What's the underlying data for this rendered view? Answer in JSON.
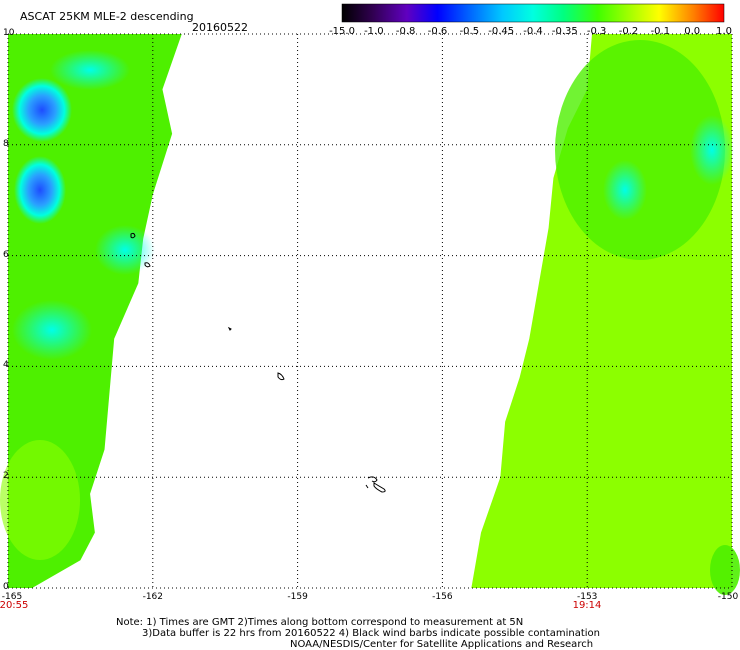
{
  "header": {
    "title": "ASCAT 25KM MLE-2 descending",
    "date": "20160522"
  },
  "colorbar": {
    "labels": [
      "-15.0",
      "-1.0",
      "-0.8",
      "-0.6",
      "-0.5",
      "-0.45",
      "-0.4",
      "-0.35",
      "-0.3",
      "-0.2",
      "-0.1",
      "0.0",
      "1.0"
    ]
  },
  "map": {
    "y_ticks": [
      "10",
      "8",
      "6",
      "4",
      "2",
      "0"
    ],
    "x_ticks": [
      "-165",
      "-162",
      "-159",
      "-156",
      "-153",
      "-150"
    ],
    "x_range": [
      -165,
      -150
    ],
    "y_range": [
      0,
      10
    ],
    "times": {
      "left": "20:55",
      "right": "19:14"
    },
    "left_swath_edge": [
      [
        -164.5,
        0
      ],
      [
        -163.5,
        0.5
      ],
      [
        -163.2,
        1
      ],
      [
        -163.3,
        1.7
      ],
      [
        -163,
        2.5
      ],
      [
        -162.9,
        3.5
      ],
      [
        -162.8,
        4.5
      ],
      [
        -162.3,
        5.5
      ],
      [
        -162.2,
        6.3
      ],
      [
        -162.0,
        7.1
      ],
      [
        -161.6,
        8.2
      ],
      [
        -161.8,
        9
      ],
      [
        -161.4,
        10
      ]
    ],
    "right_swath_edge": [
      [
        -155.4,
        0
      ],
      [
        -155.2,
        1
      ],
      [
        -154.8,
        2
      ],
      [
        -154.7,
        3
      ],
      [
        -154.4,
        3.8
      ],
      [
        -154.2,
        4.5
      ],
      [
        -154.0,
        5.5
      ],
      [
        -153.8,
        6.5
      ],
      [
        -153.7,
        7.4
      ],
      [
        -153.4,
        8.3
      ],
      [
        -153.0,
        9.0
      ],
      [
        -152.9,
        10
      ]
    ]
  },
  "notes": {
    "line1": "Note: 1) Times are GMT 2)Times along bottom correspond to measurement at 5N",
    "line2": "3)Data buffer is 22 hrs from 20160522 4) Black wind barbs indicate possible contamination",
    "line3": "NOAA/NESDIS/Center for Satellite Applications and Research"
  },
  "colors": {
    "green": "#4ef000",
    "lime": "#8cff00",
    "cyan": "#00ffe0",
    "blue": "#2060ff"
  }
}
